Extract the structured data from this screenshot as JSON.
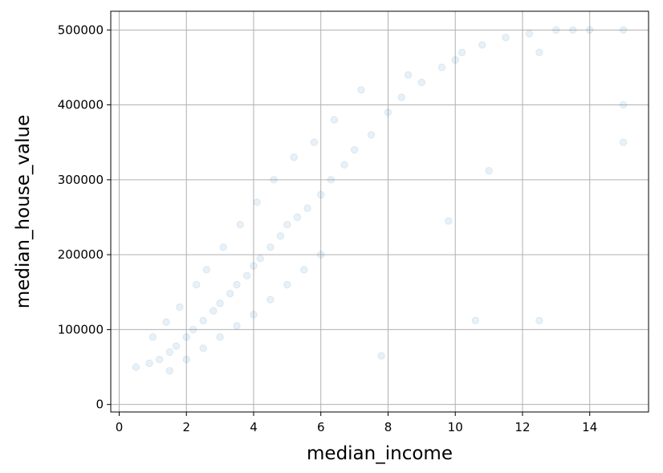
{
  "chart_data": {
    "type": "scatter",
    "title": "",
    "xlabel": "median_income",
    "ylabel": "median_house_value",
    "xlim": [
      -0.25,
      15.75
    ],
    "ylim": [
      -10000,
      525000
    ],
    "xticks": [
      0,
      2,
      4,
      6,
      8,
      10,
      12,
      14
    ],
    "yticks": [
      0,
      100000,
      200000,
      300000,
      400000,
      500000
    ],
    "grid": true,
    "legend": "none",
    "marker_color": "#1f77b4",
    "marker_alpha": 0.1,
    "series": [
      {
        "x": [
          0.5,
          0.9,
          1.2,
          1.5,
          1.7,
          2.0,
          2.2,
          2.5,
          2.8,
          3.0,
          3.3,
          3.5,
          3.8,
          4.0,
          4.2,
          4.5,
          4.8,
          5.0,
          5.3,
          5.6,
          6.0,
          6.3,
          6.7,
          7.0,
          7.5,
          8.0,
          8.4,
          9.0,
          9.6,
          10.2,
          10.8,
          11.5,
          12.2,
          13.0,
          14.0,
          15.0,
          1.0,
          1.4,
          1.8,
          2.3,
          2.6,
          3.1,
          3.6,
          4.1,
          4.6,
          5.2,
          5.8,
          6.4,
          7.2,
          8.6,
          10.0,
          12.5,
          15.0,
          15.0,
          1.5,
          2.0,
          2.5,
          3.0,
          3.5,
          4.0,
          4.5,
          5.0,
          5.5,
          6.0,
          7.8,
          9.8,
          10.6,
          11.0,
          12.5,
          13.5
        ],
        "y": [
          50000,
          55000,
          60000,
          70000,
          78000,
          90000,
          100000,
          112000,
          125000,
          135000,
          148000,
          160000,
          172000,
          185000,
          195000,
          210000,
          225000,
          240000,
          250000,
          262000,
          280000,
          300000,
          320000,
          340000,
          360000,
          390000,
          410000,
          430000,
          450000,
          470000,
          480000,
          490000,
          495000,
          500000,
          500001,
          500001,
          90000,
          110000,
          130000,
          160000,
          180000,
          210000,
          240000,
          270000,
          300000,
          330000,
          350000,
          380000,
          420000,
          440000,
          460000,
          470000,
          400000,
          350000,
          45000,
          60000,
          75000,
          90000,
          105000,
          120000,
          140000,
          160000,
          180000,
          200000,
          65000,
          245000,
          112000,
          312000,
          112000,
          500001
        ]
      }
    ]
  }
}
